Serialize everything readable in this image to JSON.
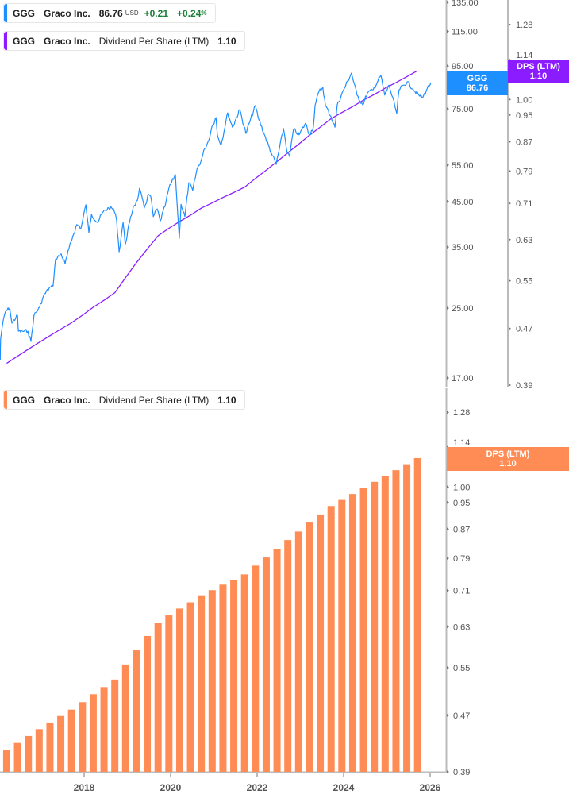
{
  "legend_price": {
    "ticker": "GGG",
    "company": "Graco Inc.",
    "price": "86.76",
    "currency": "USD",
    "change": "+0.21",
    "change_pct": "+0.24",
    "pct_sign": "%",
    "color": "#1e8fff"
  },
  "legend_dps_top": {
    "ticker": "GGG",
    "company": "Graco Inc.",
    "metric": "Dividend Per Share (LTM)",
    "value": "1.10",
    "color": "#8a1cff"
  },
  "legend_dps_bottom": {
    "ticker": "GGG",
    "company": "Graco Inc.",
    "metric": "Dividend Per Share (LTM)",
    "value": "1.10",
    "color": "#ff8c55"
  },
  "badges": {
    "price": {
      "line1": "GGG",
      "line2": "86.76",
      "color": "#1e8fff"
    },
    "dps_top": {
      "line1": "DPS (LTM)",
      "line2": "1.10",
      "color": "#8a1cff"
    },
    "dps_bottom": {
      "line1": "DPS (LTM)",
      "line2": "1.10",
      "color": "#ff8c55"
    }
  },
  "chart_data": [
    {
      "type": "line",
      "scale": "log",
      "price_axis_ticks": [
        "135.00",
        "115.00",
        "95.00",
        "75.00",
        "55.00",
        "45.00",
        "35.00",
        "25.00",
        "17.00"
      ],
      "dps_axis_ticks": [
        "1.28",
        "1.14",
        "1.00",
        "0.95",
        "0.87",
        "0.79",
        "0.71",
        "0.63",
        "0.55",
        "0.47",
        "0.39"
      ],
      "series": [
        {
          "name": "GGG",
          "color": "#1e8fff",
          "axis": "price",
          "points": [
            [
              2016.06,
              18.8
            ],
            [
              2016.07,
              21.1
            ],
            [
              2016.11,
              22.7
            ],
            [
              2016.18,
              24.5
            ],
            [
              2016.28,
              25.0
            ],
            [
              2016.33,
              23.0
            ],
            [
              2016.46,
              24.0
            ],
            [
              2016.48,
              22.0
            ],
            [
              2016.57,
              22.0
            ],
            [
              2016.7,
              22.0
            ],
            [
              2016.77,
              20.8
            ],
            [
              2016.84,
              24.0
            ],
            [
              2016.97,
              25.1
            ],
            [
              2017.06,
              26.7
            ],
            [
              2017.19,
              27.9
            ],
            [
              2017.28,
              28.2
            ],
            [
              2017.34,
              32.7
            ],
            [
              2017.47,
              33.7
            ],
            [
              2017.56,
              31.9
            ],
            [
              2017.65,
              34.7
            ],
            [
              2017.74,
              37.2
            ],
            [
              2017.83,
              39.6
            ],
            [
              2017.93,
              38.9
            ],
            [
              2018.04,
              44.2
            ],
            [
              2018.11,
              37.9
            ],
            [
              2018.17,
              41.9
            ],
            [
              2018.31,
              40.1
            ],
            [
              2018.44,
              42.5
            ],
            [
              2018.57,
              43.4
            ],
            [
              2018.68,
              43.2
            ],
            [
              2018.75,
              40.7
            ],
            [
              2018.81,
              34.1
            ],
            [
              2018.9,
              40.1
            ],
            [
              2018.95,
              35.5
            ],
            [
              2019.05,
              40.1
            ],
            [
              2019.14,
              43.8
            ],
            [
              2019.23,
              45.2
            ],
            [
              2019.28,
              48.4
            ],
            [
              2019.39,
              43.4
            ],
            [
              2019.49,
              46.8
            ],
            [
              2019.54,
              46.3
            ],
            [
              2019.6,
              41.4
            ],
            [
              2019.69,
              43.2
            ],
            [
              2019.76,
              40.4
            ],
            [
              2019.87,
              43.8
            ],
            [
              2019.96,
              48.4
            ],
            [
              2020.11,
              52.2
            ],
            [
              2020.15,
              44.3
            ],
            [
              2020.2,
              36.7
            ],
            [
              2020.24,
              44.3
            ],
            [
              2020.33,
              41.4
            ],
            [
              2020.42,
              49.9
            ],
            [
              2020.51,
              47.8
            ],
            [
              2020.61,
              53.8
            ],
            [
              2020.7,
              56.2
            ],
            [
              2020.79,
              60.3
            ],
            [
              2020.88,
              63.0
            ],
            [
              2020.95,
              67.8
            ],
            [
              2021.05,
              71.5
            ],
            [
              2021.08,
              65.0
            ],
            [
              2021.17,
              61.6
            ],
            [
              2021.32,
              73.4
            ],
            [
              2021.43,
              67.8
            ],
            [
              2021.6,
              74.7
            ],
            [
              2021.74,
              65.5
            ],
            [
              2021.96,
              76.4
            ],
            [
              2022.02,
              71.8
            ],
            [
              2022.17,
              65.0
            ],
            [
              2022.33,
              58.7
            ],
            [
              2022.44,
              55.2
            ],
            [
              2022.61,
              67.3
            ],
            [
              2022.7,
              58.7
            ],
            [
              2022.75,
              57.7
            ],
            [
              2022.84,
              67.0
            ],
            [
              2022.97,
              65.0
            ],
            [
              2023.12,
              69.3
            ],
            [
              2023.21,
              65.0
            ],
            [
              2023.3,
              67.8
            ],
            [
              2023.34,
              76.4
            ],
            [
              2023.43,
              82.6
            ],
            [
              2023.52,
              84.4
            ],
            [
              2023.58,
              76.4
            ],
            [
              2023.71,
              71.8
            ],
            [
              2023.8,
              67.8
            ],
            [
              2023.85,
              76.4
            ],
            [
              2024.0,
              83.3
            ],
            [
              2024.18,
              91.4
            ],
            [
              2024.31,
              80.9
            ],
            [
              2024.44,
              76.7
            ],
            [
              2024.55,
              81.9
            ],
            [
              2024.68,
              83.3
            ],
            [
              2024.86,
              90.2
            ],
            [
              2024.95,
              80.9
            ],
            [
              2025.05,
              85.5
            ],
            [
              2025.23,
              73.1
            ],
            [
              2025.28,
              83.3
            ],
            [
              2025.47,
              87.1
            ],
            [
              2025.6,
              83.8
            ],
            [
              2025.74,
              80.9
            ],
            [
              2025.83,
              79.8
            ],
            [
              2025.93,
              83.8
            ],
            [
              2026.02,
              86.76
            ]
          ]
        },
        {
          "name": "DPS (LTM)",
          "color": "#8a1cff",
          "axis": "dps",
          "values_ref": "quarterly DPS"
        }
      ]
    },
    {
      "type": "bar",
      "scale": "log",
      "color": "#ff8c55",
      "x_ticks": [
        "2018",
        "2020",
        "2022",
        "2024",
        "2026"
      ],
      "y_ticks": [
        "1.28",
        "1.14",
        "1.00",
        "0.95",
        "0.87",
        "0.79",
        "0.71",
        "0.63",
        "0.55",
        "0.47",
        "0.39"
      ],
      "ylim": [
        0.39,
        1.28
      ],
      "categories": [
        "2016-03",
        "2016-06",
        "2016-09",
        "2016-12",
        "2017-03",
        "2017-06",
        "2017-09",
        "2017-12",
        "2018-03",
        "2018-06",
        "2018-09",
        "2018-12",
        "2019-03",
        "2019-06",
        "2019-09",
        "2019-12",
        "2020-03",
        "2020-06",
        "2020-09",
        "2020-12",
        "2021-03",
        "2021-06",
        "2021-09",
        "2021-12",
        "2022-03",
        "2022-06",
        "2022-09",
        "2022-12",
        "2023-03",
        "2023-06",
        "2023-09",
        "2023-12",
        "2024-03",
        "2024-06",
        "2024-09",
        "2024-12",
        "2025-03",
        "2025-06",
        "2025-09"
      ],
      "values": [
        0.419,
        0.429,
        0.439,
        0.449,
        0.459,
        0.469,
        0.479,
        0.491,
        0.504,
        0.516,
        0.529,
        0.556,
        0.584,
        0.611,
        0.638,
        0.654,
        0.669,
        0.683,
        0.699,
        0.711,
        0.724,
        0.736,
        0.749,
        0.771,
        0.792,
        0.815,
        0.839,
        0.863,
        0.889,
        0.913,
        0.939,
        0.958,
        0.977,
        0.998,
        1.017,
        1.038,
        1.057,
        1.078,
        1.1
      ]
    }
  ]
}
